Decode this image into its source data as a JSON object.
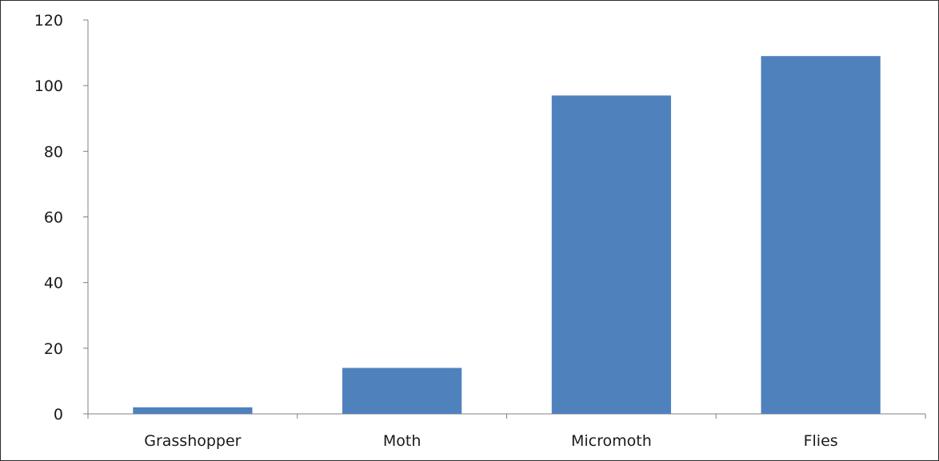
{
  "chart_data": {
    "type": "bar",
    "categories": [
      "Grasshopper",
      "Moth",
      "Micromoth",
      "Flies"
    ],
    "values": [
      2,
      14,
      97,
      109
    ],
    "title": "",
    "xlabel": "",
    "ylabel": "",
    "ylim": [
      0,
      120
    ],
    "yticks": [
      "0",
      "20",
      "40",
      "60",
      "80",
      "100",
      "120"
    ],
    "grid": false,
    "legend": "none",
    "bar_color": "#4f81bd"
  }
}
